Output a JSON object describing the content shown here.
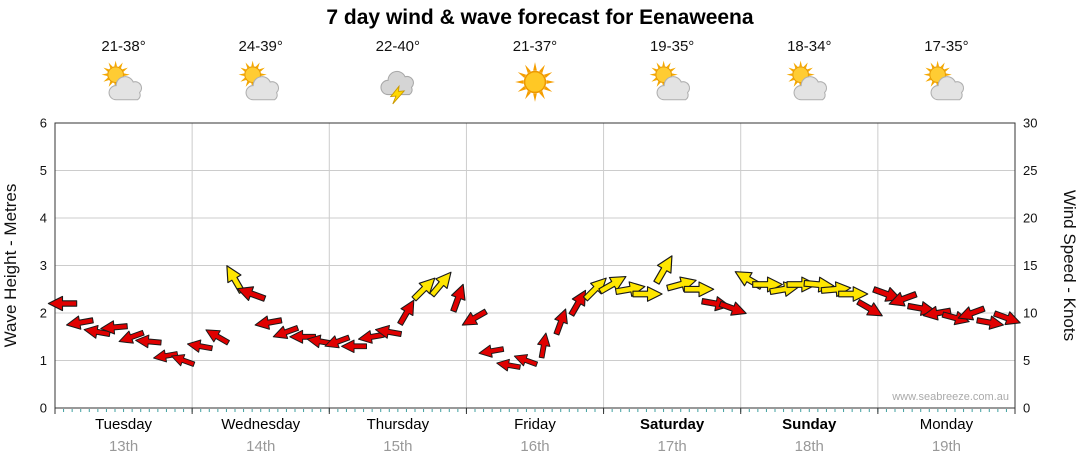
{
  "colors": {
    "arrow_red": "#E00000",
    "arrow_yellow": "#FFE600",
    "arrow_outline": "#1A1A1A",
    "grid": "#CCCCCC",
    "axis": "#333333",
    "minor_tick": "#3FA0A0",
    "tick_text": "#111111",
    "date_text": "#999999",
    "watermark_text": "#AAAAAA"
  },
  "chart_data": {
    "type": "scatter",
    "title": "7 day wind & wave forecast for Eenaweena",
    "xlabel": "",
    "ylabel": "Wave Height - Metres",
    "ylabel_right": "Wind Speed - Knots",
    "ylim": [
      0,
      6
    ],
    "ylim_right": [
      0,
      30
    ],
    "yticks": [
      0,
      1,
      2,
      3,
      4,
      5,
      6
    ],
    "yticks_right": [
      0,
      5,
      10,
      15,
      20,
      25,
      30
    ],
    "grid": true,
    "watermark": "www.seabreeze.com.au",
    "days": [
      {
        "name": "Tuesday",
        "date": "13th",
        "weekend": false,
        "temp": "21-38°",
        "icon": "sun-cloud",
        "wind_knots": [
          11,
          9,
          8,
          8.5,
          7.5,
          7,
          5.5,
          5
        ],
        "wind_dir_deg": [
          180,
          190,
          170,
          185,
          200,
          175,
          190,
          160
        ],
        "arrow_color": [
          "red",
          "red",
          "red",
          "red",
          "red",
          "red",
          "red",
          "red"
        ]
      },
      {
        "name": "Wednesday",
        "date": "14th",
        "weekend": false,
        "temp": "24-39°",
        "icon": "sun-cloud",
        "wind_knots": [
          6.5,
          7.5,
          13.5,
          12,
          9,
          8,
          7.5,
          7
        ],
        "wind_dir_deg": [
          170,
          150,
          120,
          160,
          190,
          200,
          180,
          170
        ],
        "arrow_color": [
          "red",
          "red",
          "yellow",
          "red",
          "red",
          "red",
          "red",
          "red"
        ]
      },
      {
        "name": "Thursday",
        "date": "15th",
        "weekend": false,
        "temp": "22-40°",
        "icon": "storm",
        "wind_knots": [
          7,
          6.5,
          7.5,
          8,
          10,
          12.5,
          13,
          11.5
        ],
        "wind_dir_deg": [
          200,
          180,
          190,
          170,
          60,
          45,
          50,
          70
        ],
        "arrow_color": [
          "red",
          "red",
          "red",
          "red",
          "red",
          "yellow",
          "yellow",
          "red"
        ]
      },
      {
        "name": "Friday",
        "date": "16th",
        "weekend": false,
        "temp": "21-37°",
        "icon": "sun",
        "wind_knots": [
          9.5,
          6,
          4.5,
          5,
          6.5,
          9,
          11,
          12.5
        ],
        "wind_dir_deg": [
          210,
          190,
          170,
          160,
          80,
          70,
          60,
          45
        ],
        "arrow_color": [
          "red",
          "red",
          "red",
          "red",
          "red",
          "red",
          "red",
          "yellow"
        ]
      },
      {
        "name": "Saturday",
        "date": "17th",
        "weekend": true,
        "temp": "19-35°",
        "icon": "sun-cloud",
        "wind_knots": [
          13,
          12.5,
          12,
          14.5,
          13,
          12.5,
          11,
          10.5
        ],
        "wind_dir_deg": [
          30,
          10,
          0,
          60,
          15,
          0,
          350,
          340
        ],
        "arrow_color": [
          "yellow",
          "yellow",
          "yellow",
          "yellow",
          "yellow",
          "yellow",
          "red",
          "red"
        ]
      },
      {
        "name": "Sunday",
        "date": "18th",
        "weekend": true,
        "temp": "18-34°",
        "icon": "sun-cloud",
        "wind_knots": [
          13.5,
          13,
          12.5,
          13,
          13,
          12.5,
          12,
          10.5
        ],
        "wind_dir_deg": [
          150,
          0,
          10,
          0,
          355,
          5,
          0,
          330
        ],
        "arrow_color": [
          "yellow",
          "yellow",
          "yellow",
          "yellow",
          "yellow",
          "yellow",
          "yellow",
          "red"
        ]
      },
      {
        "name": "Monday",
        "date": "19th",
        "weekend": false,
        "temp": "17-35°",
        "icon": "sun-cloud",
        "wind_knots": [
          12,
          11.5,
          10.5,
          10,
          9.5,
          10,
          9,
          9.5
        ],
        "wind_dir_deg": [
          340,
          200,
          350,
          190,
          345,
          200,
          350,
          340
        ],
        "arrow_color": [
          "red",
          "red",
          "red",
          "red",
          "red",
          "red",
          "red",
          "red"
        ]
      }
    ]
  }
}
